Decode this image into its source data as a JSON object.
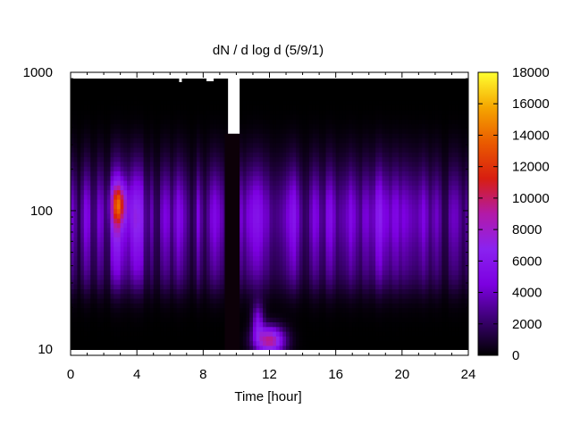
{
  "chart_data": {
    "type": "heatmap",
    "title": "dN / d log d (5/9/1)",
    "xlabel": "Time [hour]",
    "ylabel": "",
    "x_range": [
      0,
      24
    ],
    "y_range": [
      9,
      1000
    ],
    "y_scale": "log",
    "x_ticks": [
      0,
      4,
      8,
      12,
      16,
      20,
      24
    ],
    "y_ticks": [
      10,
      100,
      1000
    ],
    "colorbar": {
      "range": [
        0,
        18000
      ],
      "ticks": [
        0,
        2000,
        4000,
        6000,
        8000,
        10000,
        12000,
        14000,
        16000,
        18000
      ],
      "palette": [
        "#000000",
        "#3a0070",
        "#7c00e0",
        "#8a22f0",
        "#b21aa8",
        "#d81e10",
        "#ea5a00",
        "#f5a500",
        "#ffff30"
      ]
    },
    "missing_data": {
      "color": "#ffffff",
      "gap_hours": [
        9.5,
        10.2
      ],
      "gap_diameter_min": 360,
      "gap_diameter_max": 1000
    },
    "features": [
      {
        "label": "",
        "x_hours": 3.0,
        "diameter": 110,
        "value": 9500
      },
      {
        "label": "",
        "x_hours": 12.0,
        "diameter": 12,
        "value": 11000
      }
    ]
  }
}
